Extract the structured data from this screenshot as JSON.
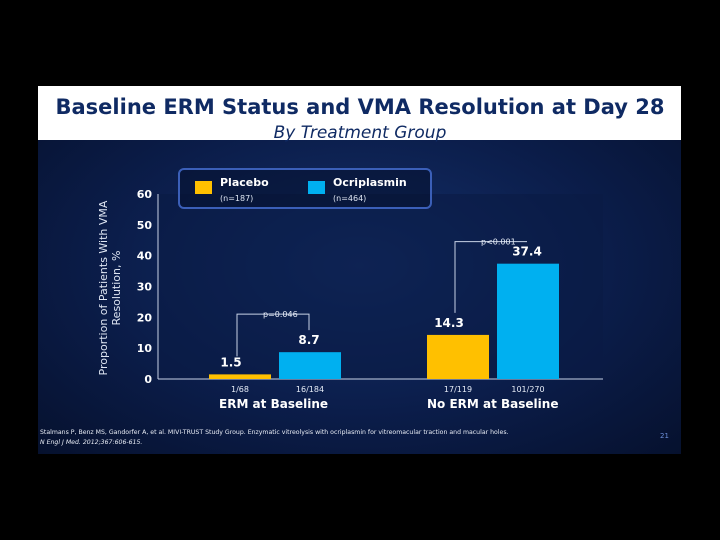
{
  "title": "Baseline ERM Status and VMA Resolution at Day 28",
  "subtitle": "By Treatment Group",
  "legend": {
    "placebo": {
      "name": "Placebo",
      "n": "(n=187)",
      "color": "#ffc000"
    },
    "ocriplasmin": {
      "name": "Ocriplasmin",
      "n": "(n=464)",
      "color": "#00b0f0"
    }
  },
  "chart_data": {
    "type": "bar",
    "title": "Baseline ERM Status and VMA Resolution at Day 28",
    "ylabel": "Proportion of Patients With VMA Resolution, %",
    "ylim": [
      0,
      60
    ],
    "yticks": [
      0,
      10,
      20,
      30,
      40,
      50,
      60
    ],
    "grid": false,
    "categories": [
      "ERM at Baseline",
      "No ERM at Baseline"
    ],
    "series": [
      {
        "name": "Placebo",
        "values": [
          1.5,
          14.3
        ],
        "counts": [
          "1/68",
          "17/119"
        ],
        "color": "#ffc000"
      },
      {
        "name": "Ocriplasmin",
        "values": [
          8.7,
          37.4
        ],
        "counts": [
          "16/184",
          "101/270"
        ],
        "color": "#00b0f0"
      }
    ],
    "annotations": [
      {
        "text": "p=0.046",
        "group": 0
      },
      {
        "text": "p<0.001",
        "group": 1
      }
    ]
  },
  "citation": {
    "line1": "Stalmans P, Benz MS, Gandorfer A, et al. MIVI-TRUST Study Group. Enzymatic vitreolysis with ocriplasmin for vitreomacular traction and macular holes.",
    "line2": "N Engl J Med. 2012;367:606-615."
  },
  "page_number": "21"
}
